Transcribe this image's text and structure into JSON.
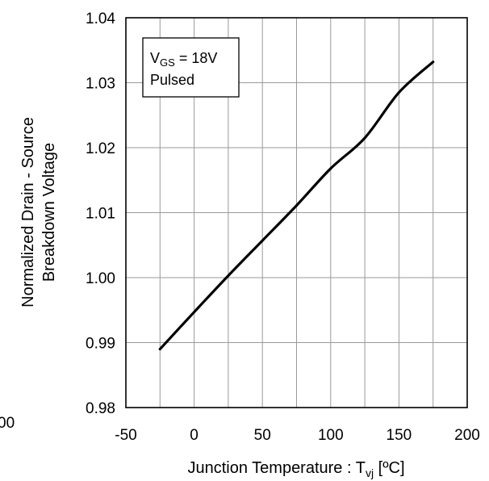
{
  "chart_data": {
    "type": "line",
    "title": "",
    "xlabel": {
      "main": "Junction Temperature : T",
      "sub": "vj",
      "unit": " [ºC]"
    },
    "ylabel": {
      "line1": "Normalized Drain - Source",
      "line2": "Breakdown Voltage"
    },
    "xlim": [
      -50,
      200
    ],
    "ylim": [
      0.98,
      1.04
    ],
    "xticks": [
      "-50",
      "0",
      "50",
      "100",
      "150",
      "200"
    ],
    "yticks": [
      "0.98",
      "0.99",
      "1.00",
      "1.01",
      "1.02",
      "1.03",
      "1.04"
    ],
    "grid": true,
    "legend": {
      "placement": "top-left",
      "line1_main": "V",
      "line1_sub": "GS",
      "line1_rest": " = 18V",
      "line2": "Pulsed"
    },
    "series": [
      {
        "color": "#000000",
        "x": [
          -25,
          0,
          25,
          50,
          75,
          100,
          125,
          150,
          175
        ],
        "y": [
          0.989,
          0.9947,
          1.0003,
          1.0057,
          1.0111,
          1.0168,
          1.0215,
          1.0285,
          1.0332
        ]
      }
    ]
  },
  "fragments": {
    "left_clipped_label": "00"
  }
}
